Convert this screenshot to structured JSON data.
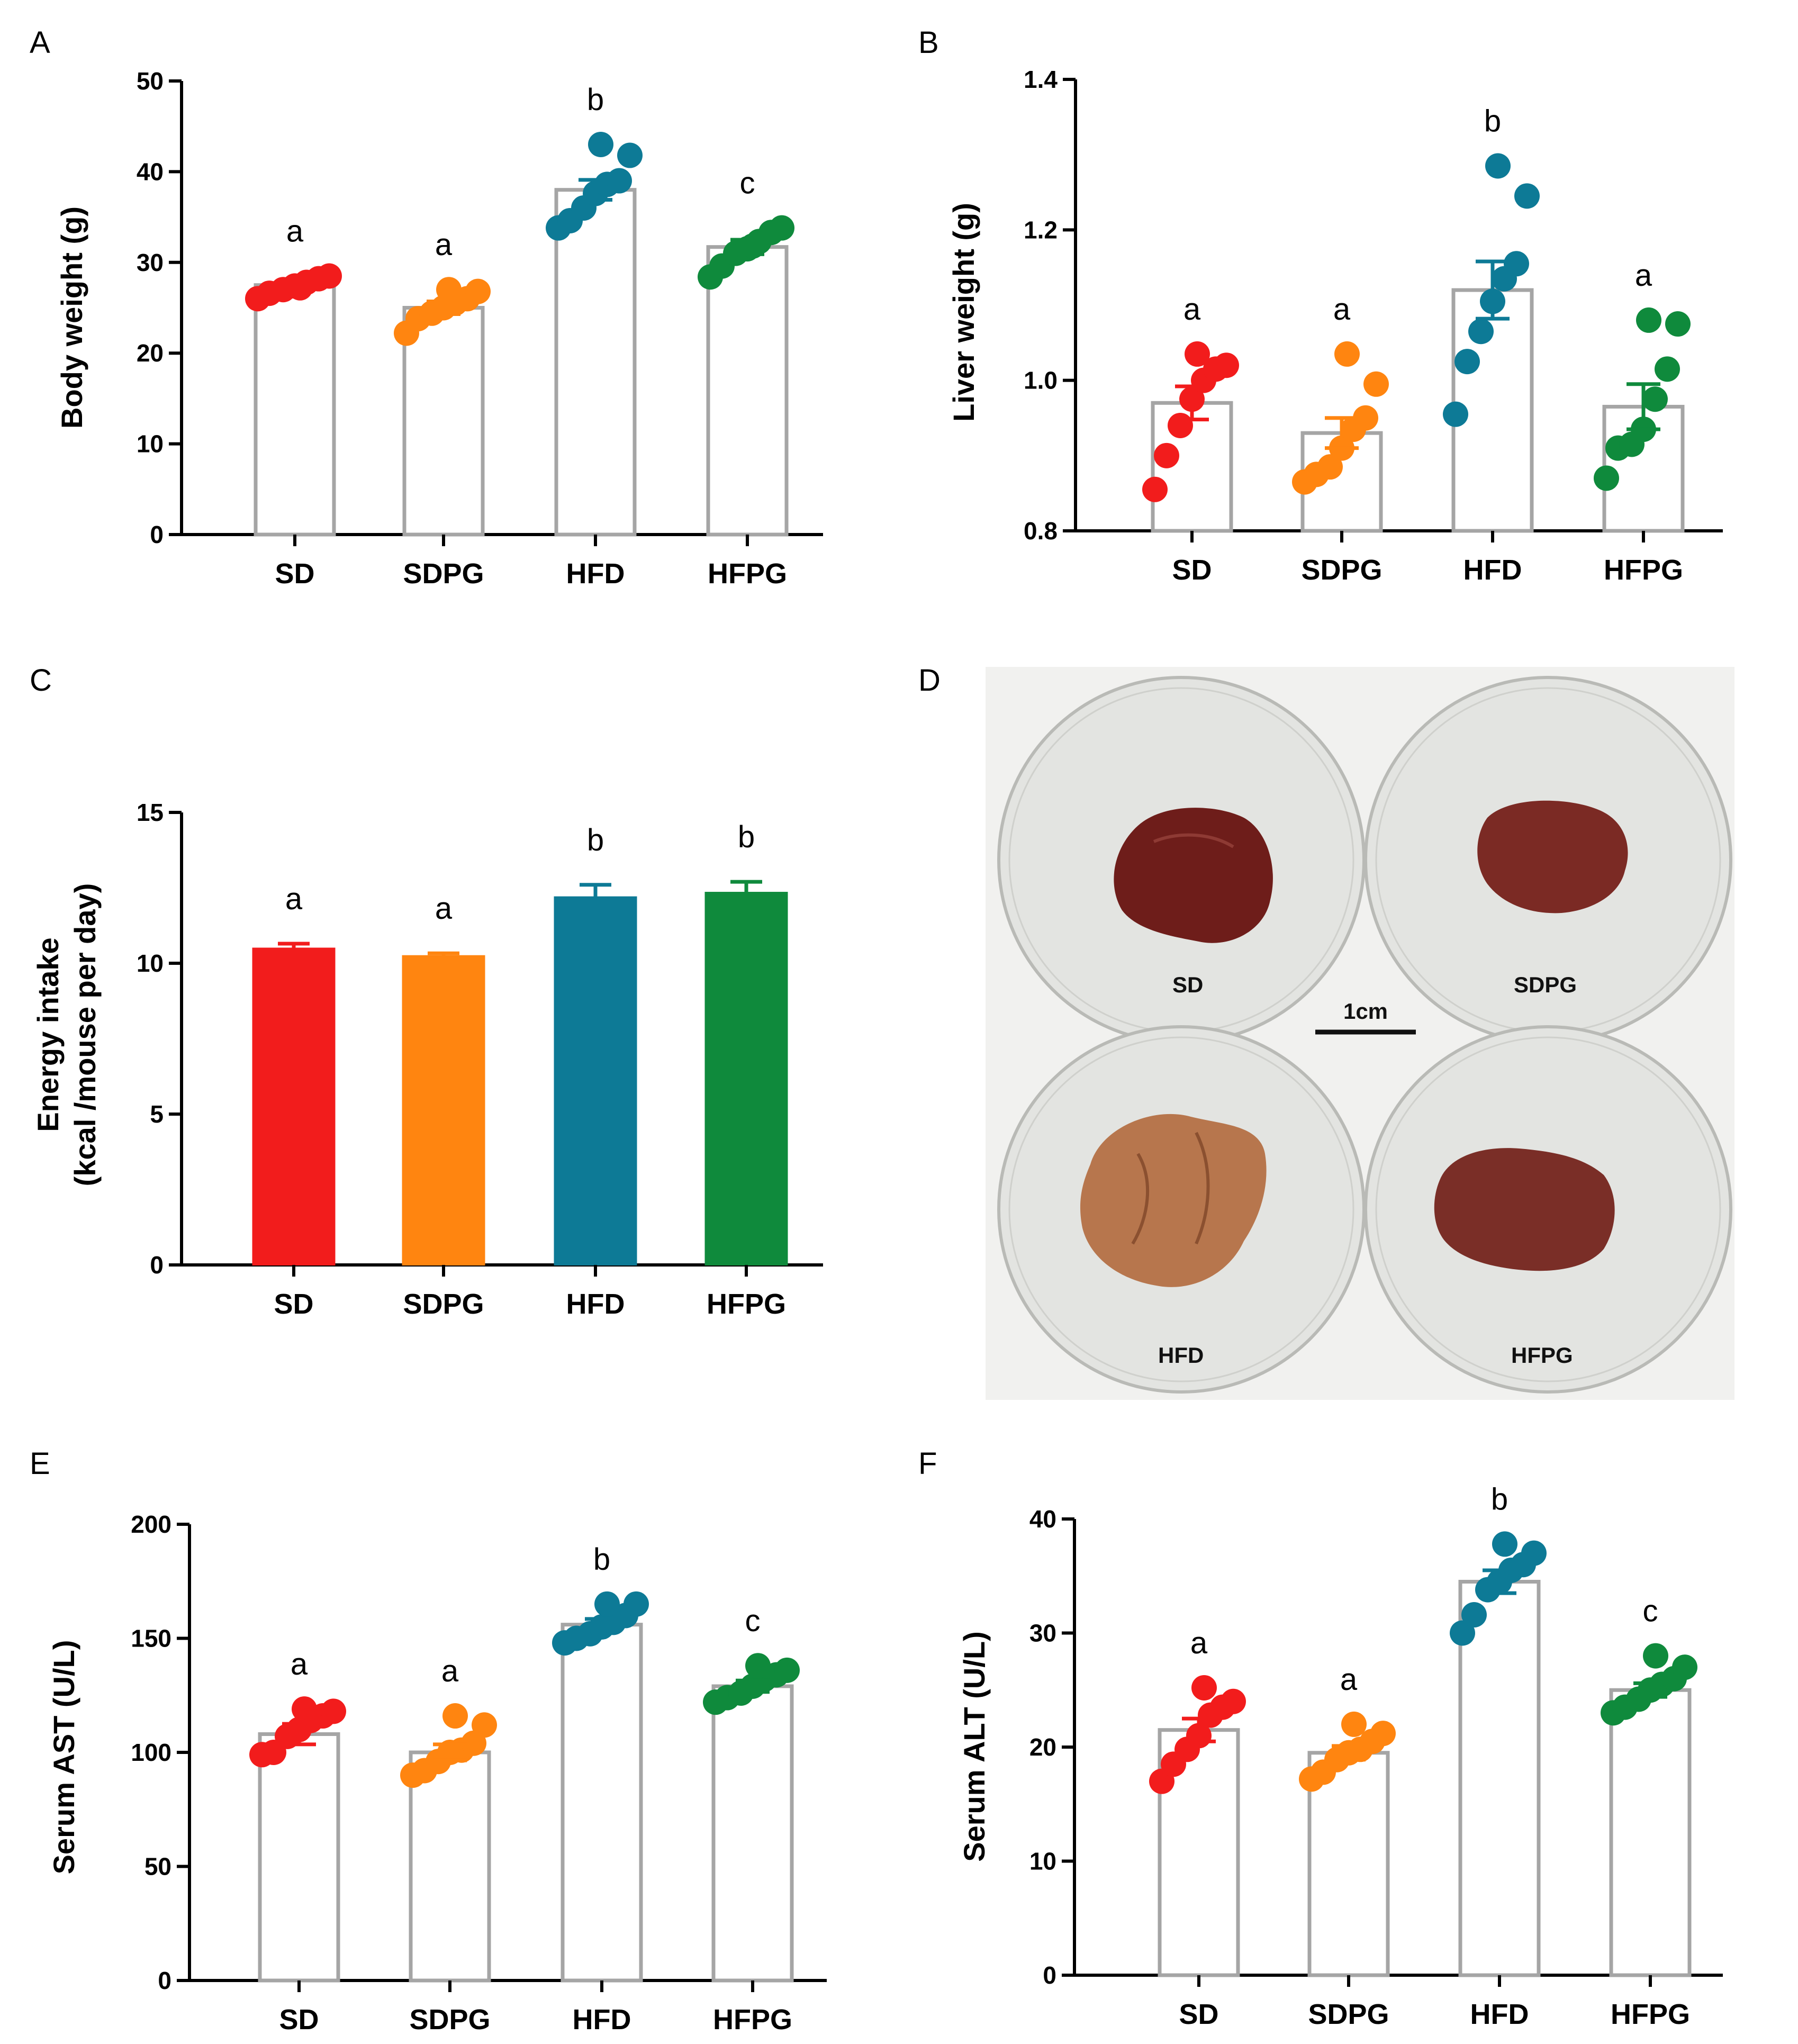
{
  "colors": {
    "SD": "#f21c1c",
    "SDPG": "#ff8510",
    "HFD": "#0d7a96",
    "HFPG": "#0f8a3c",
    "bar_outline": "#a5a5a5",
    "axis": "#000000"
  },
  "chart_data": [
    {
      "panel": "A",
      "type": "bar",
      "style": "outlined-bar-with-dots",
      "categories": [
        "SD",
        "SDPG",
        "HFD",
        "HFPG"
      ],
      "ylabel": "Body weight (g)",
      "ylim": [
        0,
        50
      ],
      "yticks": [
        0,
        10,
        20,
        30,
        40,
        50
      ],
      "values": [
        27.5,
        25.0,
        38.0,
        31.7
      ],
      "sem": [
        0.4,
        0.7,
        1.1,
        0.8
      ],
      "points": [
        [
          26.0,
          26.6,
          27.0,
          27.4,
          27.8,
          28.2,
          28.5,
          27.2
        ],
        [
          22.2,
          23.8,
          24.4,
          25.0,
          25.5,
          26.0,
          26.8,
          27.0
        ],
        [
          33.8,
          34.6,
          36.0,
          37.6,
          38.6,
          39.0,
          41.8,
          43.0
        ],
        [
          28.4,
          29.6,
          31.0,
          31.5,
          32.3,
          33.3,
          33.8,
          31.8
        ]
      ],
      "significance": [
        "a",
        "a",
        "b",
        "c"
      ]
    },
    {
      "panel": "B",
      "type": "bar",
      "style": "outlined-bar-with-dots",
      "categories": [
        "SD",
        "SDPG",
        "HFD",
        "HFPG"
      ],
      "ylabel": "Liver weight (g)",
      "ylim": [
        0.8,
        1.4
      ],
      "yticks": [
        "0.8",
        "1.0",
        "1.2",
        "1.4"
      ],
      "values": [
        0.97,
        0.93,
        1.12,
        0.965
      ],
      "sem": [
        0.022,
        0.02,
        0.038,
        0.03
      ],
      "points": [
        [
          0.855,
          0.9,
          0.94,
          0.975,
          1.0,
          1.015,
          1.02,
          1.035
        ],
        [
          0.865,
          0.875,
          0.885,
          0.91,
          0.935,
          0.95,
          0.995,
          1.035
        ],
        [
          0.955,
          1.025,
          1.065,
          1.105,
          1.135,
          1.155,
          1.245,
          1.285
        ],
        [
          0.87,
          0.91,
          0.915,
          0.935,
          0.975,
          1.015,
          1.075,
          1.08
        ]
      ],
      "significance": [
        "a",
        "a",
        "b",
        "a"
      ]
    },
    {
      "panel": "C",
      "type": "bar",
      "style": "filled-bar",
      "categories": [
        "SD",
        "SDPG",
        "HFD",
        "HFPG"
      ],
      "ylabel": "Energy intake",
      "ylabel_line2": "(kcal /mouse per day)",
      "ylim": [
        0,
        15
      ],
      "yticks": [
        0,
        5,
        10,
        15
      ],
      "values": [
        10.5,
        10.25,
        12.2,
        12.35
      ],
      "sem": [
        0.15,
        0.08,
        0.4,
        0.35
      ],
      "significance": [
        "a",
        "a",
        "b",
        "b"
      ]
    },
    {
      "panel": "E",
      "type": "bar",
      "style": "outlined-bar-with-dots",
      "categories": [
        "SD",
        "SDPG",
        "HFD",
        "HFPG"
      ],
      "ylabel": "Serum AST (U/L)",
      "ylim": [
        0,
        200
      ],
      "yticks": [
        0,
        50,
        100,
        150,
        200
      ],
      "values": [
        108,
        100,
        156,
        129
      ],
      "sem": [
        4.5,
        3.5,
        2.5,
        2.5
      ],
      "points": [
        [
          99,
          100,
          107,
          110,
          114,
          116,
          118,
          119
        ],
        [
          90,
          92,
          96,
          100,
          101,
          104,
          112,
          116
        ],
        [
          148,
          150,
          152,
          155,
          157,
          160,
          165,
          165
        ],
        [
          122,
          124,
          126,
          129,
          132,
          134,
          136,
          138
        ]
      ],
      "significance": [
        "a",
        "a",
        "b",
        "c"
      ]
    },
    {
      "panel": "F",
      "type": "bar",
      "style": "outlined-bar-with-dots",
      "categories": [
        "SD",
        "SDPG",
        "HFD",
        "HFPG"
      ],
      "ylabel": "Serum ALT (U/L)",
      "ylim": [
        0,
        40
      ],
      "yticks": [
        0,
        10,
        20,
        30,
        40
      ],
      "values": [
        21.5,
        19.5,
        34.5,
        25.0
      ],
      "sem": [
        1.0,
        0.6,
        1.0,
        0.6
      ],
      "points": [
        [
          17.0,
          18.5,
          19.8,
          21.0,
          22.8,
          23.5,
          24.0,
          25.2
        ],
        [
          17.2,
          17.8,
          18.9,
          19.5,
          19.8,
          20.5,
          21.2,
          22.0
        ],
        [
          30.0,
          31.6,
          33.8,
          34.5,
          35.5,
          36.0,
          37.0,
          37.8
        ],
        [
          23.0,
          23.5,
          24.2,
          25.0,
          25.5,
          26.0,
          27.0,
          28.0
        ]
      ],
      "significance": [
        "a",
        "a",
        "b",
        "c"
      ]
    }
  ],
  "panel_d": {
    "letter": "D",
    "labels": [
      "SD",
      "SDPG",
      "HFD",
      "HFPG"
    ],
    "scale_bar": "1cm"
  }
}
